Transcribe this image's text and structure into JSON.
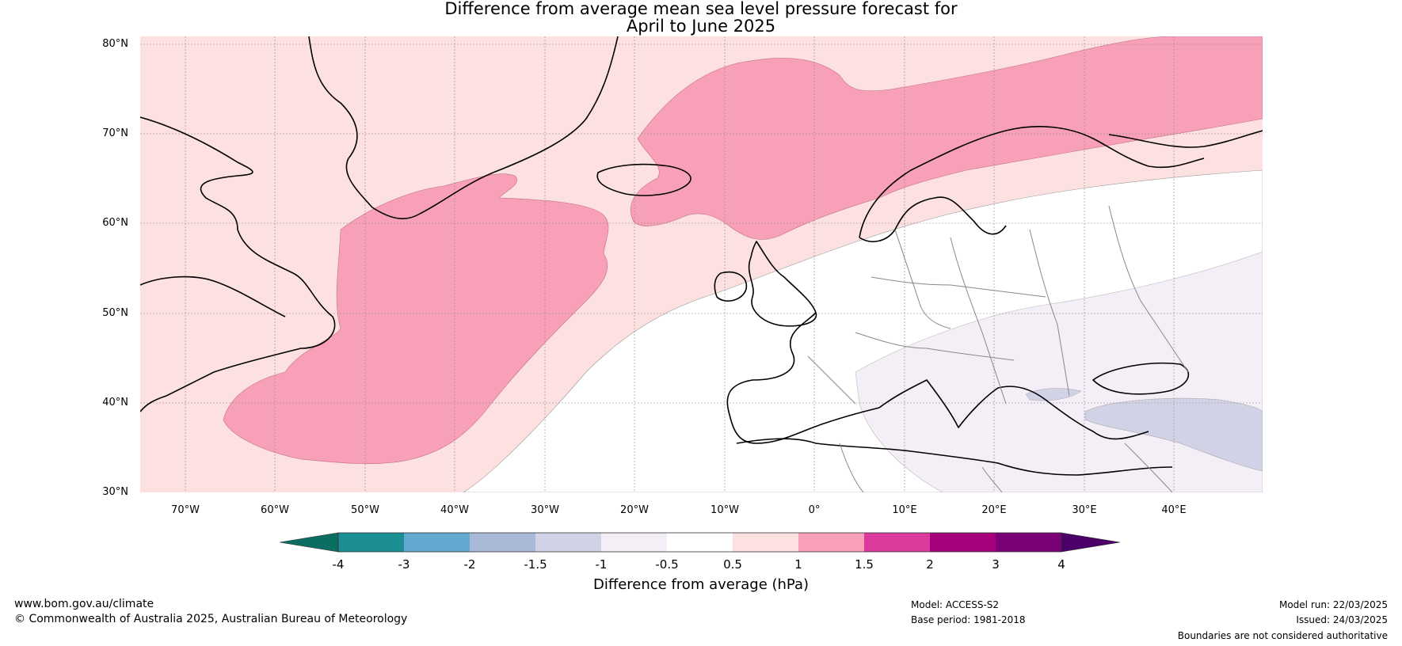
{
  "title": {
    "line1": "Difference from average mean sea level pressure forecast for",
    "line2": "April to June 2025"
  },
  "axes": {
    "lat_labels": [
      "80°N",
      "70°N",
      "60°N",
      "50°N",
      "40°N",
      "30°N"
    ],
    "lon_labels": [
      "70°W",
      "60°W",
      "50°W",
      "40°W",
      "30°W",
      "20°W",
      "10°W",
      "0°",
      "10°E",
      "20°E",
      "30°E",
      "40°E"
    ]
  },
  "colorbar": {
    "ticks": [
      "-4",
      "-3",
      "-2",
      "-1.5",
      "-1",
      "-0.5",
      "0.5",
      "1",
      "1.5",
      "2",
      "3",
      "4"
    ],
    "colors": [
      "#1b8f93",
      "#62a8d0",
      "#a9bad9",
      "#d2d2e6",
      "#f4eef7",
      "#ffffff",
      "#fde0e0",
      "#f7a0b8",
      "#dc3a9c",
      "#a6007c",
      "#7a0078"
    ],
    "extend_low_color": "#0b6e63",
    "extend_high_color": "#4a0068",
    "label": "Difference from average (hPa)"
  },
  "map": {
    "region": "North Atlantic / Europe",
    "lat_range": [
      30,
      80
    ],
    "lon_range": [
      -75,
      50
    ],
    "fill_colors": {
      "weak_positive": "#fde0e0",
      "moderate_positive": "#f7a0b8",
      "neutral": "#ffffff",
      "weak_negative": "#f4eef7",
      "moderate_negative": "#d2d2e6"
    }
  },
  "footer": {
    "website": "www.bom.gov.au/climate",
    "copyright": "© Commonwealth of Australia 2025, Australian Bureau of Meteorology",
    "model": "Model: ACCESS-S2",
    "base_period": "Base period: 1981-2018",
    "model_run": "Model run: 22/03/2025",
    "issued": "Issued: 24/03/2025",
    "disclaimer": "Boundaries are not considered authoritative"
  }
}
